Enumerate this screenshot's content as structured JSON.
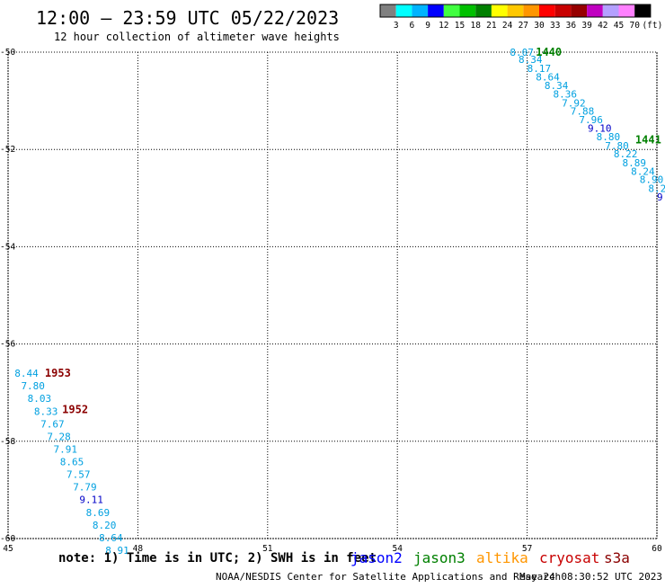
{
  "header": {
    "title": "12:00 – 23:59 UTC 05/22/2023",
    "subtitle": "12 hour collection of altimeter wave heights"
  },
  "legend": {
    "colors": [
      "#808080",
      "#00ffff",
      "#00b4ff",
      "#0000ff",
      "#40ff40",
      "#00c000",
      "#008000",
      "#ffff00",
      "#ffc800",
      "#ff9600",
      "#ff0000",
      "#c80000",
      "#960000",
      "#c000c0",
      "#b4a0ff",
      "#ff80ff",
      "#000000"
    ],
    "labels": [
      "3",
      "6",
      "9",
      "12",
      "15",
      "18",
      "21",
      "24",
      "27",
      "30",
      "33",
      "36",
      "39",
      "42",
      "45",
      "70"
    ],
    "unit": "(ft)"
  },
  "map": {
    "lon_range": [
      45,
      60
    ],
    "lat_range": [
      -50,
      -60
    ],
    "lon_ticks": [
      "45",
      "48",
      "51",
      "54",
      "57",
      "60"
    ],
    "lat_ticks": [
      "-50",
      "-52",
      "-54",
      "-56",
      "-58",
      "-60"
    ],
    "grid": true
  },
  "passes": [
    {
      "color": "#0000aa",
      "hour_labels": [
        {
          "text": "1440",
          "lon": 57.2,
          "lat": -50.0
        },
        {
          "text": "1441",
          "lon": 59.5,
          "lat": -51.8
        }
      ],
      "points": [
        {
          "v": "8.07",
          "lon": 56.6,
          "lat": -50.0,
          "c": "#00a0e0"
        },
        {
          "v": "8.34",
          "lon": 56.8,
          "lat": -50.15,
          "c": "#00a0e0"
        },
        {
          "v": "8.17",
          "lon": 57.0,
          "lat": -50.33,
          "c": "#00a0e0"
        },
        {
          "v": "8.64",
          "lon": 57.2,
          "lat": -50.51,
          "c": "#00a0e0"
        },
        {
          "v": "8.34",
          "lon": 57.4,
          "lat": -50.68,
          "c": "#00a0e0"
        },
        {
          "v": "8.36",
          "lon": 57.6,
          "lat": -50.86,
          "c": "#00a0e0"
        },
        {
          "v": "7.92",
          "lon": 57.8,
          "lat": -51.04,
          "c": "#00a0e0"
        },
        {
          "v": "7.88",
          "lon": 58.0,
          "lat": -51.21,
          "c": "#00a0e0"
        },
        {
          "v": "7.96",
          "lon": 58.2,
          "lat": -51.39,
          "c": "#00a0e0"
        },
        {
          "v": "9.10",
          "lon": 58.4,
          "lat": -51.56,
          "c": "#0000c8"
        },
        {
          "v": "8.80",
          "lon": 58.6,
          "lat": -51.74,
          "c": "#00a0e0"
        },
        {
          "v": "7.80",
          "lon": 58.8,
          "lat": -51.92,
          "c": "#00a0e0"
        },
        {
          "v": "8.22",
          "lon": 59.0,
          "lat": -52.09,
          "c": "#00a0e0"
        },
        {
          "v": "8.89",
          "lon": 59.2,
          "lat": -52.27,
          "c": "#00a0e0"
        },
        {
          "v": "8.24",
          "lon": 59.4,
          "lat": -52.45,
          "c": "#00a0e0"
        },
        {
          "v": "8.90",
          "lon": 59.6,
          "lat": -52.62,
          "c": "#00a0e0"
        },
        {
          "v": "8.2",
          "lon": 59.8,
          "lat": -52.8,
          "c": "#00a0e0"
        },
        {
          "v": "9",
          "lon": 60.0,
          "lat": -52.98,
          "c": "#0000c8"
        }
      ]
    },
    {
      "color": "#8b0000",
      "hour_labels": [
        {
          "text": "1953",
          "lon": 45.85,
          "lat": -56.6
        },
        {
          "text": "1952",
          "lon": 46.25,
          "lat": -57.35
        }
      ],
      "points": [
        {
          "v": "8.44",
          "lon": 45.15,
          "lat": -56.6,
          "c": "#00a0e0"
        },
        {
          "v": "7.80",
          "lon": 45.3,
          "lat": -56.86,
          "c": "#00a0e0"
        },
        {
          "v": "8.03",
          "lon": 45.45,
          "lat": -57.12,
          "c": "#00a0e0"
        },
        {
          "v": "8.33",
          "lon": 45.6,
          "lat": -57.38,
          "c": "#00a0e0"
        },
        {
          "v": "7.67",
          "lon": 45.75,
          "lat": -57.64,
          "c": "#00a0e0"
        },
        {
          "v": "7.28",
          "lon": 45.9,
          "lat": -57.9,
          "c": "#00a0e0"
        },
        {
          "v": "7.91",
          "lon": 46.05,
          "lat": -58.16,
          "c": "#00a0e0"
        },
        {
          "v": "8.65",
          "lon": 46.2,
          "lat": -58.42,
          "c": "#00a0e0"
        },
        {
          "v": "7.57",
          "lon": 46.35,
          "lat": -58.68,
          "c": "#00a0e0"
        },
        {
          "v": "7.79",
          "lon": 46.5,
          "lat": -58.94,
          "c": "#00a0e0"
        },
        {
          "v": "9.11",
          "lon": 46.65,
          "lat": -59.2,
          "c": "#0000c8"
        },
        {
          "v": "8.69",
          "lon": 46.8,
          "lat": -59.46,
          "c": "#00a0e0"
        },
        {
          "v": "8.20",
          "lon": 46.95,
          "lat": -59.72,
          "c": "#00a0e0"
        },
        {
          "v": "8.64",
          "lon": 47.1,
          "lat": -59.98,
          "c": "#00a0e0"
        },
        {
          "v": "8.91",
          "lon": 47.25,
          "lat": -60.24,
          "c": "#00a0e0"
        }
      ]
    }
  ],
  "footer": {
    "note": "note: 1) Time is in UTC; 2) SWH is in feet",
    "satellites": [
      {
        "name": "jason2",
        "color": "#0000ff"
      },
      {
        "name": "jason3",
        "color": "#008000"
      },
      {
        "name": "altika",
        "color": "#ff9600"
      },
      {
        "name": "cryosat",
        "color": "#c80000"
      },
      {
        "name": "s3a",
        "color": "#8b0000"
      }
    ],
    "credit": "NOAA/NESDIS Center for Satellite Applications and Research",
    "timestamp": "May 24 08:30:52 UTC 2023"
  }
}
